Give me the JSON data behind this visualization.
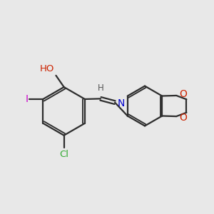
{
  "background_color": "#e8e8e8",
  "bond_color": "#2d2d2d",
  "bond_width": 1.6,
  "font_size_labels": 9,
  "fig_size": [
    3.0,
    3.0
  ],
  "dpi": 100,
  "atom_colors": {
    "O": "#cc2200",
    "N": "#0000cc",
    "Cl": "#33aa33",
    "I": "#cc00cc",
    "H": "#555555",
    "C": "#2d2d2d"
  }
}
